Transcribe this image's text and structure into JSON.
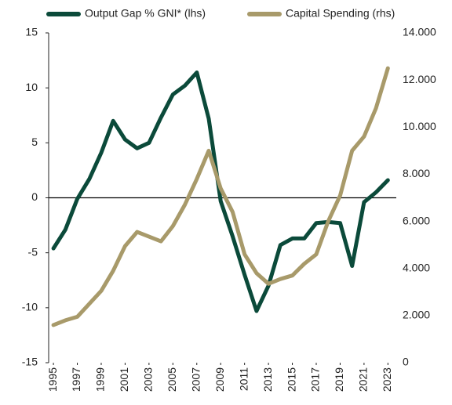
{
  "chart_data": {
    "type": "line",
    "x": [
      1995,
      1996,
      1997,
      1998,
      1999,
      2000,
      2001,
      2002,
      2003,
      2004,
      2005,
      2006,
      2007,
      2008,
      2009,
      2010,
      2011,
      2012,
      2013,
      2014,
      2015,
      2016,
      2017,
      2018,
      2019,
      2020,
      2021,
      2022,
      2023
    ],
    "xlim": [
      1994.6,
      2023.7
    ],
    "xticks": [
      1995,
      1997,
      1999,
      2001,
      2003,
      2005,
      2007,
      2009,
      2011,
      2013,
      2015,
      2017,
      2019,
      2021,
      2023
    ],
    "ylim": [
      -15,
      15
    ],
    "yticks": [
      -15,
      -10,
      -5,
      0,
      5,
      10,
      15
    ],
    "y2lim": [
      0,
      14000
    ],
    "y2ticks": [
      0,
      {
        "value": 2000,
        "label": "2.000"
      },
      {
        "value": 4000,
        "label": "4.000"
      },
      {
        "value": 6000,
        "label": "6.000"
      },
      {
        "value": 8000,
        "label": "8.000"
      },
      {
        "value": 10000,
        "label": "10.000"
      },
      {
        "value": 12000,
        "label": "12.000"
      },
      {
        "value": 14000,
        "label": "14.000"
      }
    ],
    "legend": "top",
    "series": [
      {
        "name": "Output Gap % GNI* (lhs)",
        "color": "#0b4a3a",
        "values": [
          -4.6,
          -2.9,
          -0.1,
          1.7,
          4.1,
          7.0,
          5.3,
          4.5,
          5.0,
          7.3,
          9.4,
          10.2,
          11.4,
          7.2,
          -0.3,
          -3.5,
          -7.0,
          -10.3,
          -8.0,
          -4.3,
          -3.7,
          -3.7,
          -2.3,
          -2.2,
          -2.3,
          -6.2,
          -0.4,
          0.5,
          1.6
        ]
      },
      {
        "name": "Capital Spending (rhs)",
        "color": "#a89a6a",
        "axis": "y2",
        "values": [
          1600,
          1800,
          1950,
          2500,
          3050,
          3900,
          4950,
          5550,
          5350,
          5150,
          5800,
          6700,
          7800,
          9000,
          7400,
          6400,
          4600,
          3800,
          3350,
          3550,
          3700,
          4200,
          4600,
          6000,
          7100,
          9000,
          9600,
          10800,
          12500
        ]
      }
    ]
  }
}
